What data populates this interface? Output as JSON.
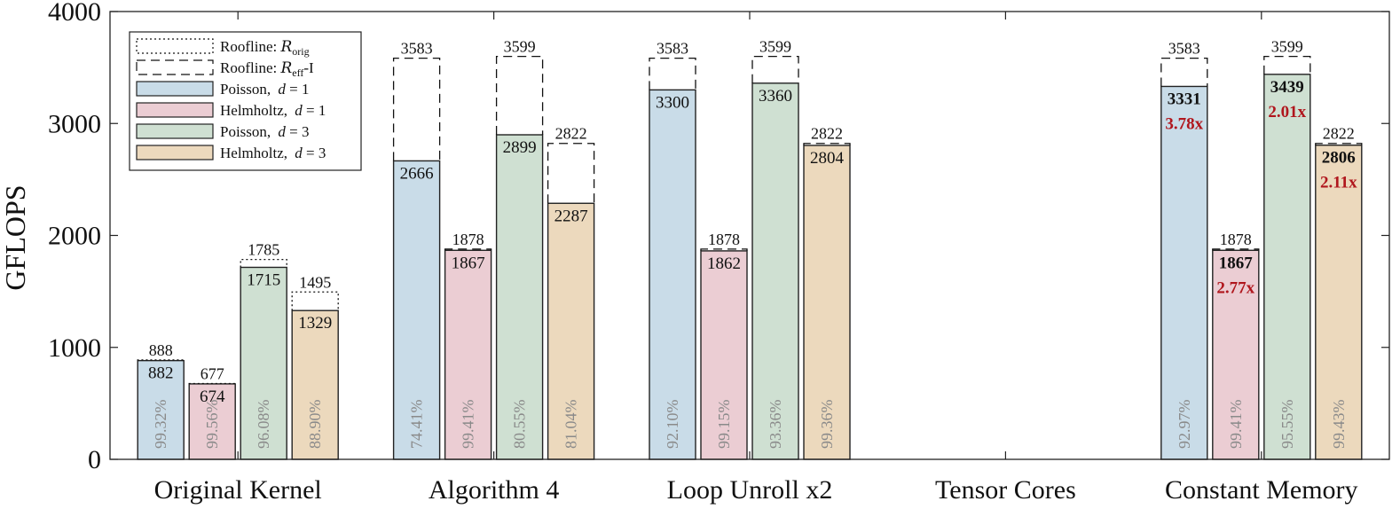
{
  "chart_data": {
    "type": "bar",
    "ylabel": "GFLOPS",
    "ylim": [
      0,
      4000
    ],
    "yticks": [
      0,
      1000,
      2000,
      3000,
      4000
    ],
    "categories": [
      "Original Kernel",
      "Algorithm 4",
      "Loop Unroll x2",
      "Tensor Cores",
      "Constant Memory"
    ],
    "legend_position": "top-left",
    "legend": {
      "roofline_orig_prefix": "Roofline: ",
      "roofline_orig_sym": "R",
      "roofline_orig_sub": "orig",
      "roofline_eff_prefix": "Roofline: ",
      "roofline_eff_sym": "R",
      "roofline_eff_sub": "eff",
      "roofline_eff_suffix": "-I"
    },
    "series": [
      {
        "name": "Poisson, d = 1",
        "name_prefix": "Poisson, ",
        "name_var": "d",
        "name_suffix": " = 1",
        "color": "#c9dce8",
        "values": [
          882,
          2666,
          3300,
          null,
          3331
        ],
        "value_labels": [
          "882",
          "2666",
          "3300",
          "",
          "3331"
        ],
        "rooflines": [
          888,
          3583,
          3583,
          null,
          3583
        ],
        "roofline_labels": [
          "888",
          "3583",
          "3583",
          "",
          "3583"
        ],
        "roofline_type": [
          "orig",
          "eff",
          "eff",
          null,
          "eff"
        ],
        "efficiency": [
          "99.32%",
          "74.41%",
          "92.10%",
          "",
          "92.97%"
        ],
        "speedup": [
          "",
          "",
          "",
          "",
          "3.78x"
        ]
      },
      {
        "name": "Helmholtz, d = 1",
        "name_prefix": "Helmholtz, ",
        "name_var": "d",
        "name_suffix": " = 1",
        "color": "#ebcdd3",
        "values": [
          674,
          1867,
          1862,
          null,
          1867
        ],
        "value_labels": [
          "674",
          "1867",
          "1862",
          "",
          "1867"
        ],
        "rooflines": [
          677,
          1878,
          1878,
          null,
          1878
        ],
        "roofline_labels": [
          "677",
          "1878",
          "1878",
          "",
          "1878"
        ],
        "roofline_type": [
          "orig",
          "eff",
          "eff",
          null,
          "eff"
        ],
        "efficiency": [
          "99.56%",
          "99.41%",
          "99.15%",
          "",
          "99.41%"
        ],
        "speedup": [
          "",
          "",
          "",
          "",
          "2.77x"
        ]
      },
      {
        "name": "Poisson, d = 3",
        "name_prefix": "Poisson, ",
        "name_var": "d",
        "name_suffix": " = 3",
        "color": "#cfe0d2",
        "values": [
          1715,
          2899,
          3360,
          null,
          3439
        ],
        "value_labels": [
          "1715",
          "2899",
          "3360",
          "",
          "3439"
        ],
        "rooflines": [
          1785,
          3599,
          3599,
          null,
          3599
        ],
        "roofline_labels": [
          "1785",
          "3599",
          "3599",
          "",
          "3599"
        ],
        "roofline_type": [
          "orig",
          "eff",
          "eff",
          null,
          "eff"
        ],
        "efficiency": [
          "96.08%",
          "80.55%",
          "93.36%",
          "",
          "95.55%"
        ],
        "speedup": [
          "",
          "",
          "",
          "",
          "2.01x"
        ]
      },
      {
        "name": "Helmholtz, d = 3",
        "name_prefix": "Helmholtz, ",
        "name_var": "d",
        "name_suffix": " = 3",
        "color": "#ecd9bd",
        "values": [
          1329,
          2287,
          2804,
          null,
          2806
        ],
        "value_labels": [
          "1329",
          "2287",
          "2804",
          "",
          "2806"
        ],
        "rooflines": [
          1495,
          2822,
          2822,
          null,
          2822
        ],
        "roofline_labels": [
          "1495",
          "2822",
          "2822",
          "",
          "2822"
        ],
        "roofline_type": [
          "orig",
          "eff",
          "eff",
          null,
          "eff"
        ],
        "efficiency": [
          "88.90%",
          "81.04%",
          "99.36%",
          "",
          "99.43%"
        ],
        "speedup": [
          "",
          "",
          "",
          "",
          "2.11x"
        ]
      }
    ],
    "bold_value_groups": [
      4
    ],
    "speedup_color": "#b0161d"
  }
}
